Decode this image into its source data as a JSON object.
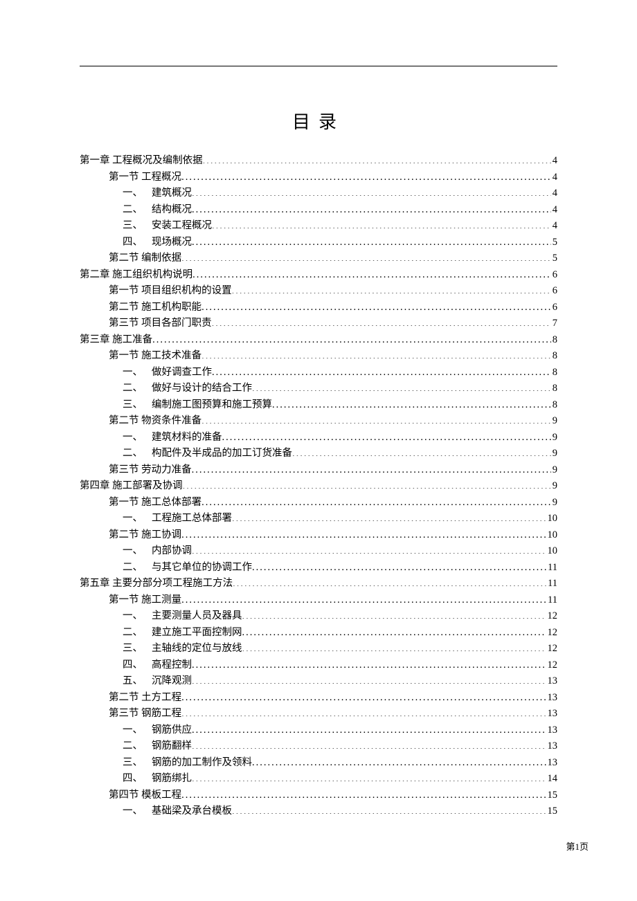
{
  "title": "目录",
  "page_label": "第1页",
  "style": {
    "background_color": "#ffffff",
    "text_color": "#000000",
    "title_fontsize": 26,
    "title_letter_spacing": 12,
    "body_fontsize": 14.5,
    "line_height": 23.5,
    "indent_level_0": 0,
    "indent_level_1": 42,
    "indent_level_2": 62,
    "font_family": "SimSun"
  },
  "toc": [
    {
      "level": 0,
      "label": "第一章 工程概况及编制依据",
      "page": "4"
    },
    {
      "level": 1,
      "label": "第一节 工程概况",
      "page": "4"
    },
    {
      "level": 2,
      "num": "一、",
      "label": "建筑概况",
      "page": "4"
    },
    {
      "level": 2,
      "num": "二、",
      "label": "结构概况",
      "page": "4"
    },
    {
      "level": 2,
      "num": "三、",
      "label": "安装工程概况",
      "page": "4"
    },
    {
      "level": 2,
      "num": "四、",
      "label": "现场概况",
      "page": "5"
    },
    {
      "level": 1,
      "label": "第二节 编制依据",
      "page": "5"
    },
    {
      "level": 0,
      "label": "第二章 施工组织机构说明",
      "page": "6"
    },
    {
      "level": 1,
      "label": "第一节 项目组织机构的设置",
      "page": "6"
    },
    {
      "level": 1,
      "label": "第二节 施工机构职能",
      "page": "6"
    },
    {
      "level": 1,
      "label": "第三节 项目各部门职责",
      "page": "7"
    },
    {
      "level": 0,
      "label": "第三章 施工准备",
      "page": "8"
    },
    {
      "level": 1,
      "label": "第一节 施工技术准备",
      "page": "8"
    },
    {
      "level": 2,
      "num": "一、",
      "label": "做好调查工作",
      "page": "8"
    },
    {
      "level": 2,
      "num": "二、",
      "label": "做好与设计的结合工作",
      "page": "8"
    },
    {
      "level": 2,
      "num": "三、",
      "label": "编制施工图预算和施工预算",
      "page": "8"
    },
    {
      "level": 1,
      "label": "第二节 物资条件准备",
      "page": "9"
    },
    {
      "level": 2,
      "num": "一、",
      "label": "建筑材料的准备",
      "page": "9"
    },
    {
      "level": 2,
      "num": "二、",
      "label": "构配件及半成品的加工订货准备",
      "page": "9"
    },
    {
      "level": 1,
      "label": "第三节 劳动力准备",
      "page": "9"
    },
    {
      "level": 0,
      "label": "第四章 施工部署及协调",
      "page": "9"
    },
    {
      "level": 1,
      "label": "第一节 施工总体部署",
      "page": "9"
    },
    {
      "level": 2,
      "num": "一、",
      "label": "工程施工总体部署",
      "page": "10"
    },
    {
      "level": 1,
      "label": "第二节 施工协调",
      "page": "10"
    },
    {
      "level": 2,
      "num": "一、",
      "label": "内部协调",
      "page": "10"
    },
    {
      "level": 2,
      "num": "二、",
      "label": "与其它单位的协调工作",
      "page": "11"
    },
    {
      "level": 0,
      "label": "第五章 主要分部分项工程施工方法",
      "page": "11"
    },
    {
      "level": 1,
      "label": "第一节 施工测量",
      "page": "11"
    },
    {
      "level": 2,
      "num": "一、",
      "label": "主要测量人员及器具",
      "page": "12"
    },
    {
      "level": 2,
      "num": "二、",
      "label": "建立施工平面控制网",
      "page": "12"
    },
    {
      "level": 2,
      "num": "三、",
      "label": "主轴线的定位与放线",
      "page": "12"
    },
    {
      "level": 2,
      "num": "四、",
      "label": "高程控制",
      "page": "12"
    },
    {
      "level": 2,
      "num": "五、",
      "label": "沉降观测",
      "page": "13"
    },
    {
      "level": 1,
      "label": "第二节 土方工程",
      "page": "13"
    },
    {
      "level": 1,
      "label": "第三节 钢筋工程",
      "page": "13"
    },
    {
      "level": 2,
      "num": "一、",
      "label": "钢筋供应",
      "page": "13"
    },
    {
      "level": 2,
      "num": "二、",
      "label": "钢筋翻样",
      "page": "13"
    },
    {
      "level": 2,
      "num": "三、",
      "label": "钢筋的加工制作及领料",
      "page": "13"
    },
    {
      "level": 2,
      "num": "四、",
      "label": "钢筋绑扎",
      "page": "14"
    },
    {
      "level": 1,
      "label": "第四节 模板工程",
      "page": "15"
    },
    {
      "level": 2,
      "num": "一、",
      "label": "基础梁及承台模板",
      "page": "15"
    }
  ]
}
